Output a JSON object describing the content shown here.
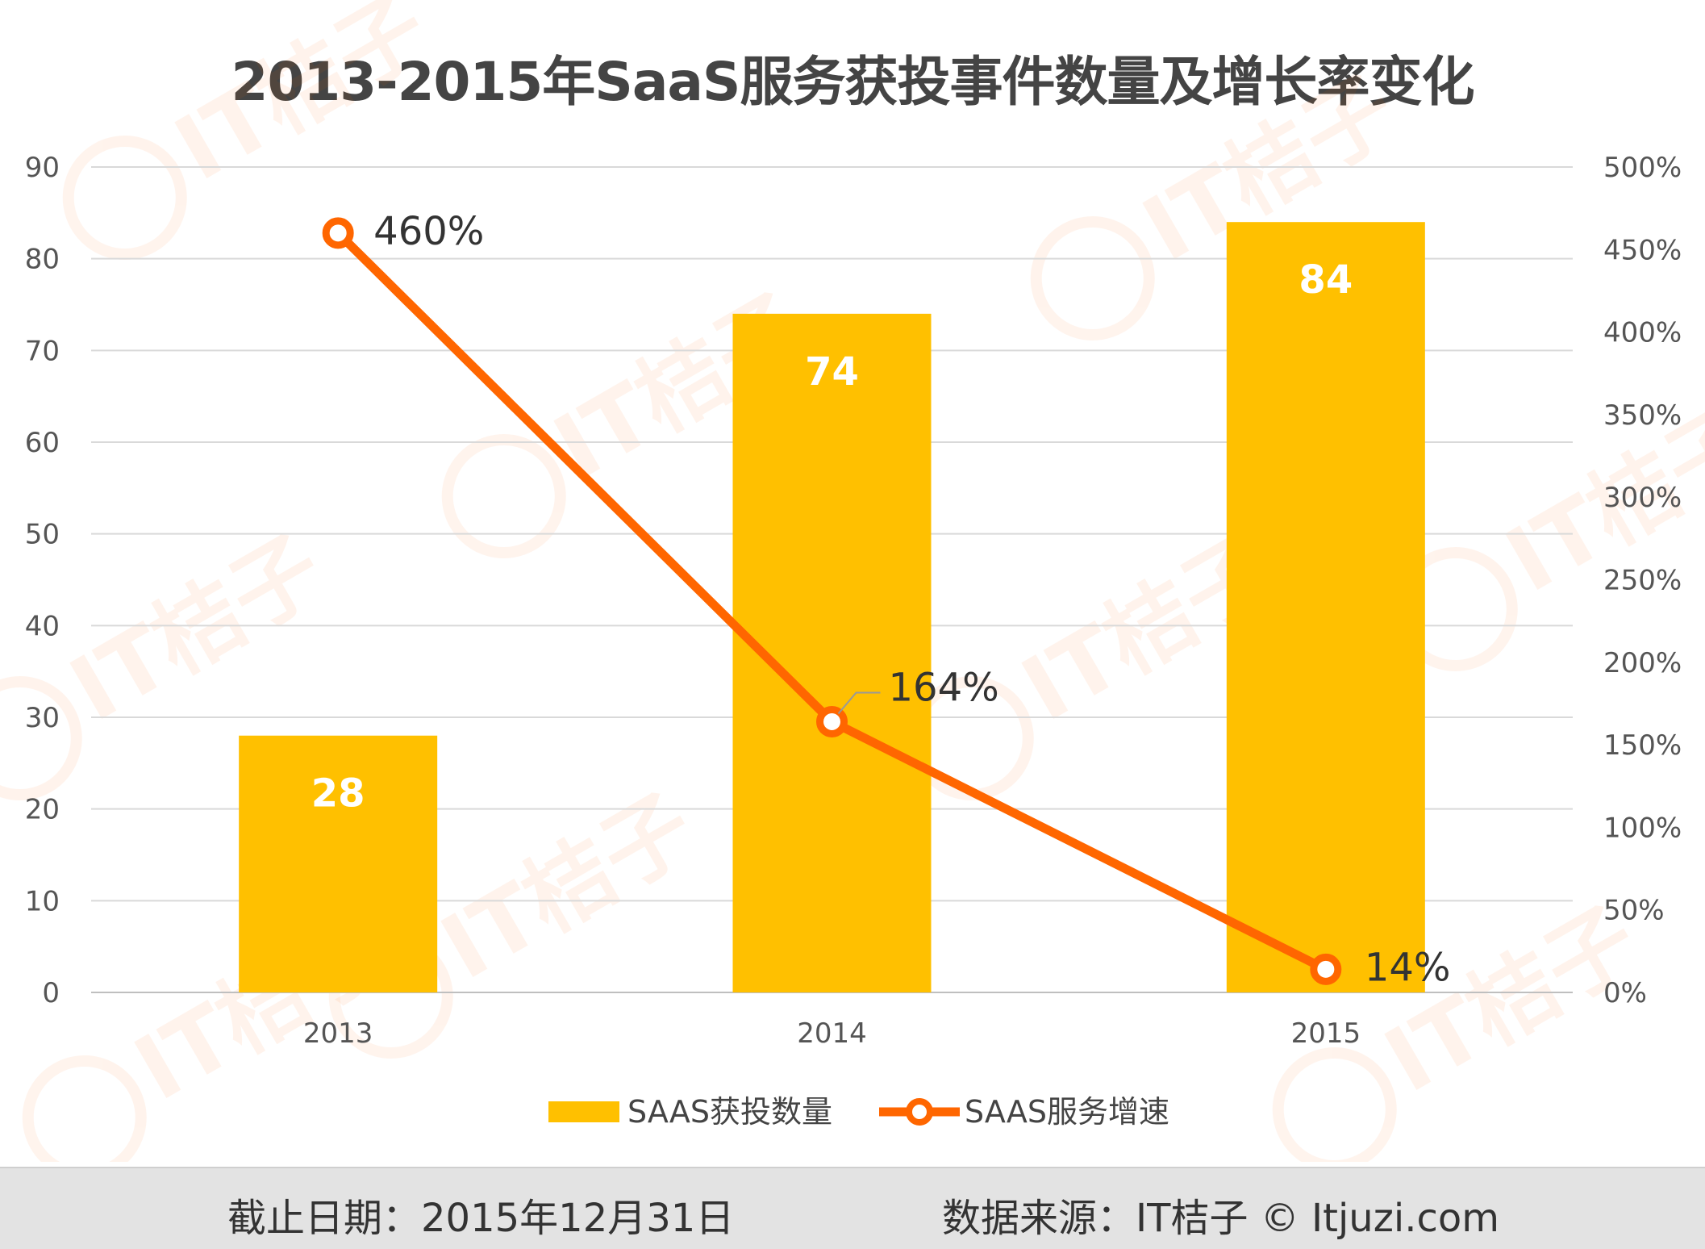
{
  "chart_data": {
    "type": "bar+line",
    "title": "2013-2015年SaaS服务获投事件数量及增长率变化",
    "categories": [
      "2013",
      "2014",
      "2015"
    ],
    "series": [
      {
        "name": "SAAS获投数量",
        "type": "bar",
        "axis": "left",
        "values": [
          28,
          74,
          84
        ],
        "data_labels": [
          "28",
          "74",
          "84"
        ],
        "color": "#FFC000"
      },
      {
        "name": "SAAS服务增速",
        "type": "line",
        "axis": "right",
        "values": [
          460,
          164,
          14
        ],
        "data_labels": [
          "460%",
          "164%",
          "14%"
        ],
        "color": "#FF6600"
      }
    ],
    "y_left": {
      "min": 0,
      "max": 90,
      "ticks": [
        "0",
        "10",
        "20",
        "30",
        "40",
        "50",
        "60",
        "70",
        "80",
        "90"
      ]
    },
    "y_right": {
      "min": 0,
      "max": 500,
      "ticks": [
        "0%",
        "50%",
        "100%",
        "150%",
        "200%",
        "250%",
        "300%",
        "350%",
        "400%",
        "450%",
        "500%"
      ]
    },
    "grid": true,
    "legend": "bottom-center"
  },
  "footer": {
    "date_text": "截止日期：2015年12月31日",
    "source_text": "数据来源：IT桔子 © Itjuzi.com"
  },
  "watermark": "IT桔子",
  "colors": {
    "bar": "#FFC000",
    "line": "#FF6600",
    "grid": "#d9d9d9",
    "axis_text": "#555555"
  }
}
